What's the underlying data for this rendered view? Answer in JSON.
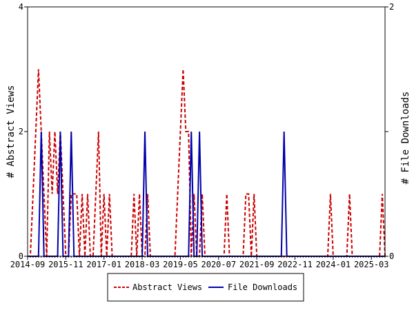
{
  "chart_data": {
    "type": "line",
    "x_tick_labels": [
      "2014-09",
      "2015-11",
      "2017-01",
      "2018-03",
      "2019-05",
      "2020-07",
      "2021-09",
      "2022-11",
      "2024-01",
      "2025-03"
    ],
    "y_left": {
      "label": "# Abstract Views",
      "ylim": [
        0,
        4
      ],
      "ticks": [
        "0",
        "2",
        "4"
      ]
    },
    "y_right": {
      "label": "# File Downloads",
      "ylim": [
        0,
        2
      ],
      "ticks": [
        "0",
        "1",
        "2"
      ]
    },
    "grid": false,
    "legend": {
      "position": "bottom-center"
    },
    "series": [
      {
        "name": "Abstract Views",
        "color": "#cc0000",
        "dash": true,
        "axis": "left",
        "points": [
          [
            "2014-09",
            0
          ],
          [
            "2014-10",
            0
          ],
          [
            "2014-11",
            1
          ],
          [
            "2014-12",
            2
          ],
          [
            "2015-01",
            3
          ],
          [
            "2015-02",
            2
          ],
          [
            "2015-03",
            1
          ],
          [
            "2015-04",
            0
          ],
          [
            "2015-05",
            2
          ],
          [
            "2015-06",
            1
          ],
          [
            "2015-07",
            2
          ],
          [
            "2015-08",
            1
          ],
          [
            "2015-09",
            2
          ],
          [
            "2015-10",
            1
          ],
          [
            "2015-11",
            0
          ],
          [
            "2015-12",
            0
          ],
          [
            "2016-01",
            1
          ],
          [
            "2016-02",
            1
          ],
          [
            "2016-03",
            1
          ],
          [
            "2016-04",
            0
          ],
          [
            "2016-05",
            1
          ],
          [
            "2016-06",
            0
          ],
          [
            "2016-07",
            1
          ],
          [
            "2016-08",
            0
          ],
          [
            "2016-09",
            0
          ],
          [
            "2016-10",
            1
          ],
          [
            "2016-11",
            2
          ],
          [
            "2016-12",
            0
          ],
          [
            "2017-01",
            1
          ],
          [
            "2017-02",
            0
          ],
          [
            "2017-03",
            1
          ],
          [
            "2017-04",
            0
          ],
          [
            "2017-05",
            0
          ],
          [
            "2017-06",
            0
          ],
          [
            "2017-07",
            0
          ],
          [
            "2017-08",
            0
          ],
          [
            "2017-09",
            0
          ],
          [
            "2017-10",
            0
          ],
          [
            "2017-11",
            0
          ],
          [
            "2017-12",
            1
          ],
          [
            "2018-01",
            0
          ],
          [
            "2018-02",
            1
          ],
          [
            "2018-03",
            0
          ],
          [
            "2018-04",
            0
          ],
          [
            "2018-05",
            1
          ],
          [
            "2018-06",
            0
          ],
          [
            "2018-07",
            0
          ],
          [
            "2018-08",
            0
          ],
          [
            "2018-09",
            0
          ],
          [
            "2018-10",
            0
          ],
          [
            "2018-11",
            0
          ],
          [
            "2018-12",
            0
          ],
          [
            "2019-01",
            0
          ],
          [
            "2019-02",
            0
          ],
          [
            "2019-03",
            0
          ],
          [
            "2019-04",
            1
          ],
          [
            "2019-05",
            2
          ],
          [
            "2019-06",
            3
          ],
          [
            "2019-07",
            2
          ],
          [
            "2019-08",
            2
          ],
          [
            "2019-09",
            0
          ],
          [
            "2019-10",
            1
          ],
          [
            "2019-11",
            0
          ],
          [
            "2019-12",
            0
          ],
          [
            "2020-01",
            1
          ],
          [
            "2020-02",
            0
          ],
          [
            "2020-03",
            0
          ],
          [
            "2020-04",
            0
          ],
          [
            "2020-05",
            0
          ],
          [
            "2020-06",
            0
          ],
          [
            "2020-07",
            0
          ],
          [
            "2020-08",
            0
          ],
          [
            "2020-09",
            0
          ],
          [
            "2020-10",
            1
          ],
          [
            "2020-11",
            0
          ],
          [
            "2020-12",
            0
          ],
          [
            "2021-01",
            0
          ],
          [
            "2021-02",
            0
          ],
          [
            "2021-03",
            0
          ],
          [
            "2021-04",
            0
          ],
          [
            "2021-05",
            1
          ],
          [
            "2021-06",
            1
          ],
          [
            "2021-07",
            0
          ],
          [
            "2021-08",
            1
          ],
          [
            "2021-09",
            0
          ],
          [
            "2021-10",
            0
          ],
          [
            "2021-11",
            0
          ],
          [
            "2021-12",
            0
          ],
          [
            "2022-01",
            0
          ],
          [
            "2022-02",
            0
          ],
          [
            "2022-03",
            0
          ],
          [
            "2022-04",
            0
          ],
          [
            "2022-05",
            0
          ],
          [
            "2022-06",
            0
          ],
          [
            "2022-07",
            0
          ],
          [
            "2022-08",
            0
          ],
          [
            "2022-09",
            0
          ],
          [
            "2022-10",
            0
          ],
          [
            "2022-11",
            0
          ],
          [
            "2022-12",
            0
          ],
          [
            "2023-01",
            0
          ],
          [
            "2023-02",
            0
          ],
          [
            "2023-03",
            0
          ],
          [
            "2023-04",
            0
          ],
          [
            "2023-05",
            0
          ],
          [
            "2023-06",
            0
          ],
          [
            "2023-07",
            0
          ],
          [
            "2023-08",
            0
          ],
          [
            "2023-09",
            0
          ],
          [
            "2023-10",
            0
          ],
          [
            "2023-11",
            0
          ],
          [
            "2023-12",
            1
          ],
          [
            "2024-01",
            0
          ],
          [
            "2024-02",
            0
          ],
          [
            "2024-03",
            0
          ],
          [
            "2024-04",
            0
          ],
          [
            "2024-05",
            0
          ],
          [
            "2024-06",
            0
          ],
          [
            "2024-07",
            1
          ],
          [
            "2024-08",
            0
          ],
          [
            "2024-09",
            0
          ],
          [
            "2024-10",
            0
          ],
          [
            "2024-11",
            0
          ],
          [
            "2024-12",
            0
          ],
          [
            "2025-01",
            0
          ],
          [
            "2025-02",
            0
          ],
          [
            "2025-03",
            0
          ],
          [
            "2025-04",
            0
          ],
          [
            "2025-05",
            0
          ],
          [
            "2025-06",
            0
          ],
          [
            "2025-07",
            1
          ],
          [
            "2025-08",
            0
          ]
        ]
      },
      {
        "name": "File Downloads",
        "color": "#0000aa",
        "dash": false,
        "axis": "right",
        "points": [
          [
            "2014-09",
            0
          ],
          [
            "2014-10",
            0
          ],
          [
            "2014-11",
            0
          ],
          [
            "2014-12",
            0
          ],
          [
            "2015-01",
            0
          ],
          [
            "2015-02",
            1
          ],
          [
            "2015-03",
            0
          ],
          [
            "2015-04",
            0
          ],
          [
            "2015-05",
            0
          ],
          [
            "2015-06",
            0
          ],
          [
            "2015-07",
            0
          ],
          [
            "2015-08",
            0
          ],
          [
            "2015-09",
            1
          ],
          [
            "2015-10",
            0
          ],
          [
            "2015-11",
            0
          ],
          [
            "2015-12",
            0
          ],
          [
            "2016-01",
            1
          ],
          [
            "2016-02",
            0
          ],
          [
            "2016-03",
            0
          ],
          [
            "2016-04",
            0
          ],
          [
            "2016-05",
            0
          ],
          [
            "2016-06",
            0
          ],
          [
            "2016-07",
            0
          ],
          [
            "2016-08",
            0
          ],
          [
            "2016-09",
            0
          ],
          [
            "2016-10",
            0
          ],
          [
            "2016-11",
            0
          ],
          [
            "2016-12",
            0
          ],
          [
            "2017-01",
            0
          ],
          [
            "2017-02",
            0
          ],
          [
            "2017-03",
            0
          ],
          [
            "2017-04",
            0
          ],
          [
            "2017-05",
            0
          ],
          [
            "2017-06",
            0
          ],
          [
            "2017-07",
            0
          ],
          [
            "2017-08",
            0
          ],
          [
            "2017-09",
            0
          ],
          [
            "2017-10",
            0
          ],
          [
            "2017-11",
            0
          ],
          [
            "2017-12",
            0
          ],
          [
            "2018-01",
            0
          ],
          [
            "2018-02",
            0
          ],
          [
            "2018-03",
            0
          ],
          [
            "2018-04",
            1
          ],
          [
            "2018-05",
            0
          ],
          [
            "2018-06",
            0
          ],
          [
            "2018-07",
            0
          ],
          [
            "2018-08",
            0
          ],
          [
            "2018-09",
            0
          ],
          [
            "2018-10",
            0
          ],
          [
            "2018-11",
            0
          ],
          [
            "2018-12",
            0
          ],
          [
            "2019-01",
            0
          ],
          [
            "2019-02",
            0
          ],
          [
            "2019-03",
            0
          ],
          [
            "2019-04",
            0
          ],
          [
            "2019-05",
            0
          ],
          [
            "2019-06",
            0
          ],
          [
            "2019-07",
            0
          ],
          [
            "2019-08",
            0
          ],
          [
            "2019-09",
            1
          ],
          [
            "2019-10",
            0
          ],
          [
            "2019-11",
            0
          ],
          [
            "2019-12",
            1
          ],
          [
            "2020-01",
            0
          ],
          [
            "2020-02",
            0
          ],
          [
            "2020-03",
            0
          ],
          [
            "2020-04",
            0
          ],
          [
            "2020-05",
            0
          ],
          [
            "2020-06",
            0
          ],
          [
            "2020-07",
            0
          ],
          [
            "2020-08",
            0
          ],
          [
            "2020-09",
            0
          ],
          [
            "2020-10",
            0
          ],
          [
            "2020-11",
            0
          ],
          [
            "2020-12",
            0
          ],
          [
            "2021-01",
            0
          ],
          [
            "2021-02",
            0
          ],
          [
            "2021-03",
            0
          ],
          [
            "2021-04",
            0
          ],
          [
            "2021-05",
            0
          ],
          [
            "2021-06",
            0
          ],
          [
            "2021-07",
            0
          ],
          [
            "2021-08",
            0
          ],
          [
            "2021-09",
            0
          ],
          [
            "2021-10",
            0
          ],
          [
            "2021-11",
            0
          ],
          [
            "2021-12",
            0
          ],
          [
            "2022-01",
            0
          ],
          [
            "2022-02",
            0
          ],
          [
            "2022-03",
            0
          ],
          [
            "2022-04",
            0
          ],
          [
            "2022-05",
            0
          ],
          [
            "2022-06",
            0
          ],
          [
            "2022-07",
            1
          ],
          [
            "2022-08",
            0
          ],
          [
            "2022-09",
            0
          ],
          [
            "2022-10",
            0
          ],
          [
            "2022-11",
            0
          ],
          [
            "2022-12",
            0
          ],
          [
            "2023-01",
            0
          ],
          [
            "2023-02",
            0
          ],
          [
            "2023-03",
            0
          ],
          [
            "2023-04",
            0
          ],
          [
            "2023-05",
            0
          ],
          [
            "2023-06",
            0
          ],
          [
            "2023-07",
            0
          ],
          [
            "2023-08",
            0
          ],
          [
            "2023-09",
            0
          ],
          [
            "2023-10",
            0
          ],
          [
            "2023-11",
            0
          ],
          [
            "2023-12",
            0
          ],
          [
            "2024-01",
            0
          ],
          [
            "2024-02",
            0
          ],
          [
            "2024-03",
            0
          ],
          [
            "2024-04",
            0
          ],
          [
            "2024-05",
            0
          ],
          [
            "2024-06",
            0
          ],
          [
            "2024-07",
            0
          ],
          [
            "2024-08",
            0
          ],
          [
            "2024-09",
            0
          ],
          [
            "2024-10",
            0
          ],
          [
            "2024-11",
            0
          ],
          [
            "2024-12",
            0
          ],
          [
            "2025-01",
            0
          ],
          [
            "2025-02",
            0
          ],
          [
            "2025-03",
            0
          ],
          [
            "2025-04",
            0
          ],
          [
            "2025-05",
            0
          ],
          [
            "2025-06",
            0
          ],
          [
            "2025-07",
            0
          ],
          [
            "2025-08",
            0
          ]
        ]
      }
    ]
  }
}
